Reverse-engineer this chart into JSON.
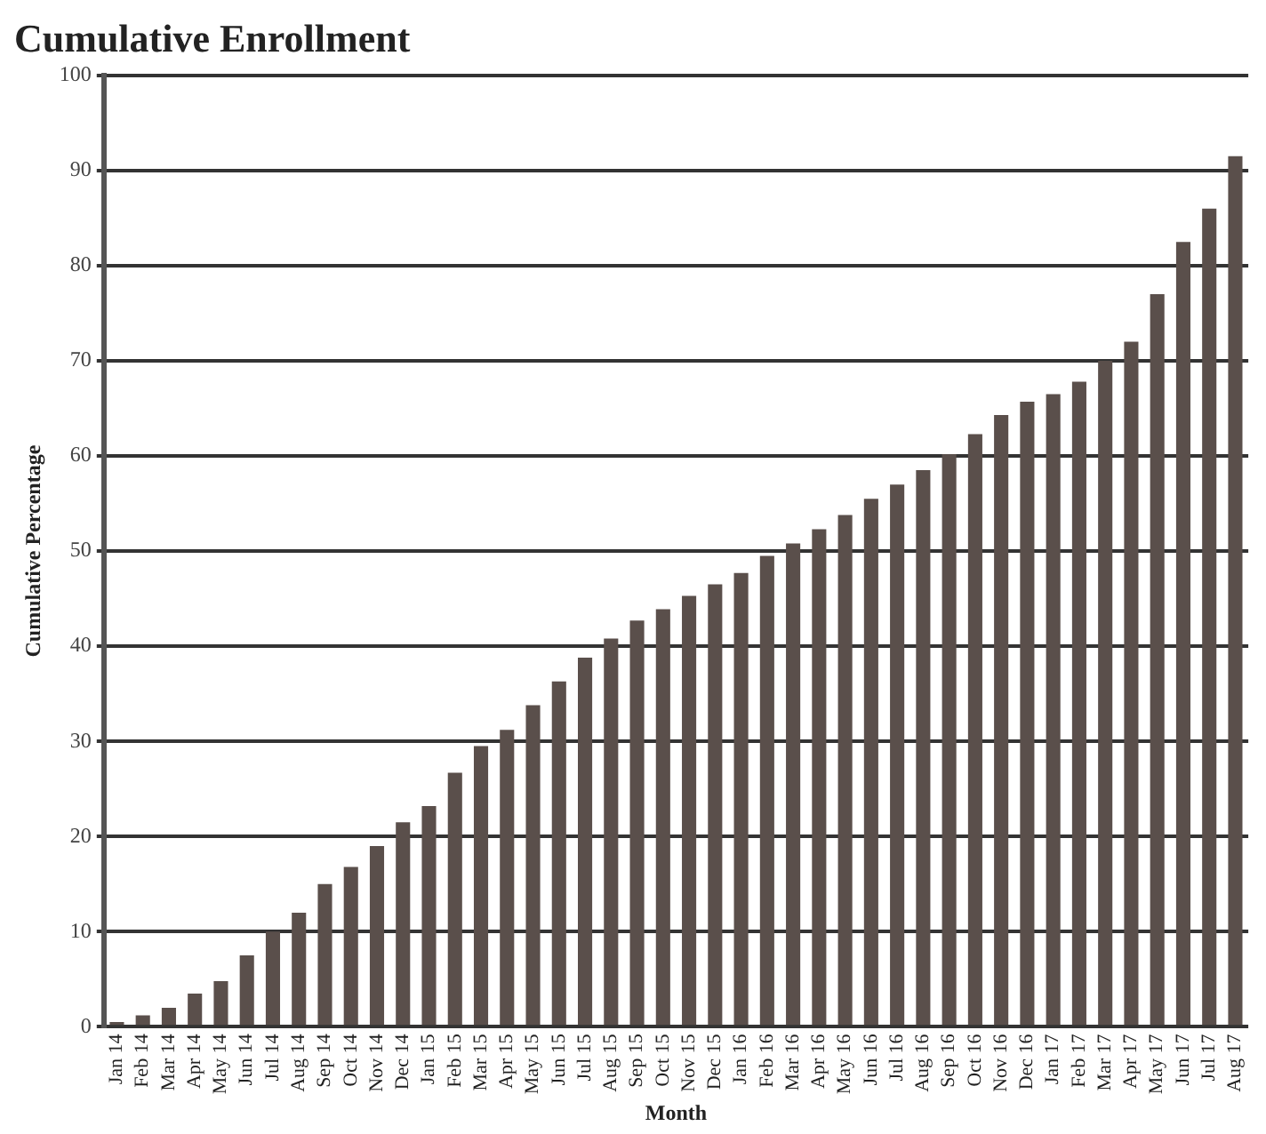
{
  "chart_data": {
    "type": "bar",
    "title": "Cumulative Enrollment",
    "xlabel": "Month",
    "ylabel": "Cumulative Percentage",
    "categories": [
      "Jan 14",
      "Feb 14",
      "Mar 14",
      "Apr 14",
      "May 14",
      "Jun 14",
      "Jul 14",
      "Aug 14",
      "Sep 14",
      "Oct 14",
      "Nov 14",
      "Dec 14",
      "Jan 15",
      "Feb 15",
      "Mar 15",
      "Apr 15",
      "May 15",
      "Jun 15",
      "Jul 15",
      "Aug 15",
      "Sep 15",
      "Oct 15",
      "Nov 15",
      "Dec 15",
      "Jan 16",
      "Feb 16",
      "Mar 16",
      "Apr 16",
      "May 16",
      "Jun 16",
      "Jul 16",
      "Aug 16",
      "Sep 16",
      "Oct 16",
      "Nov 16",
      "Dec 16",
      "Jan 17",
      "Feb 17",
      "Mar 17",
      "Apr 17",
      "May 17",
      "Jun 17",
      "Jul 17",
      "Aug 17"
    ],
    "values": [
      0.5,
      1.2,
      2,
      3.5,
      4.8,
      7.5,
      10,
      12,
      15,
      16.8,
      19,
      21.5,
      23.2,
      26.7,
      29.5,
      31.2,
      33.8,
      36.3,
      38.8,
      40.8,
      42.7,
      43.9,
      45.3,
      46.5,
      47.7,
      49.5,
      50.8,
      52.3,
      53.8,
      55.5,
      57,
      58.5,
      60.2,
      62.3,
      64.3,
      65.7,
      66.5,
      67.8,
      70,
      72,
      77,
      82.5,
      86,
      91.5
    ],
    "color": "#5a4f4b",
    "ylim": [
      0,
      100
    ],
    "yticks": [
      0,
      10,
      20,
      30,
      40,
      50,
      60,
      70,
      80,
      90,
      100
    ],
    "grid": "y",
    "legend": false
  }
}
